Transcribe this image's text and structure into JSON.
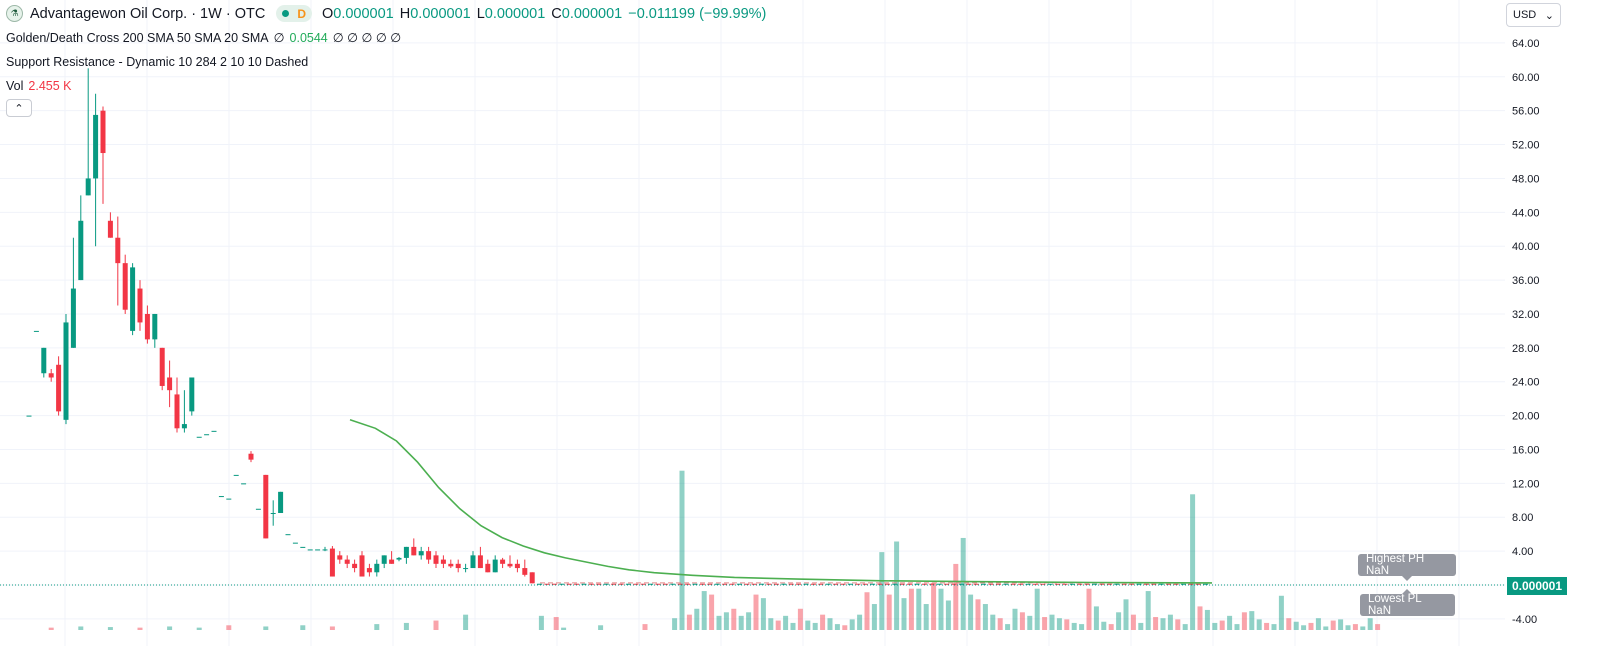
{
  "header": {
    "symbol_title": "Advantagewon Oil Corp. · 1W · OTC",
    "interval_badge": "D",
    "ohlc": [
      {
        "label": "O",
        "value": "0.000001"
      },
      {
        "label": "H",
        "value": "0.000001"
      },
      {
        "label": "L",
        "value": "0.000001"
      },
      {
        "label": "C",
        "value": "0.000001"
      }
    ],
    "change": "−0.011199 (−99.99%)"
  },
  "indicators": {
    "cross": {
      "name": "Golden/Death Cross 200 SMA 50 SMA 20 SMA",
      "value_a": "∅",
      "value_main": "0.0544",
      "rest": "∅ ∅ ∅ ∅ ∅"
    },
    "support": {
      "name": "Support Resistance - Dynamic 10 284 2 10 10 Dashed"
    },
    "volume": {
      "name": "Vol",
      "value": "2.455 K"
    }
  },
  "currency_selector": {
    "value": "USD"
  },
  "last_price_tag": "0.000001",
  "tooltips": {
    "highest": "Highest PH NaN",
    "lowest": "Lowest PL NaN"
  },
  "colors": {
    "up": "#089981",
    "down": "#f23645",
    "sma": "#4caf50",
    "grid": "#f0f3fa"
  },
  "icons": {
    "collapse": "chevron-up-icon",
    "currency_dropdown": "chevron-down-icon",
    "logo": "company-logo-icon"
  },
  "chart_data": {
    "type": "candlestick",
    "y_ticks": [
      "64.00",
      "60.00",
      "56.00",
      "52.00",
      "48.00",
      "44.00",
      "40.00",
      "36.00",
      "32.00",
      "28.00",
      "24.00",
      "20.00",
      "16.00",
      "12.00",
      "8.00",
      "4.00",
      "0.000001",
      "-4.00"
    ],
    "ylim": [
      -4,
      64
    ],
    "candles": [
      {
        "o": 20,
        "h": 20,
        "l": 20,
        "c": 20
      },
      {
        "o": 30,
        "h": 30,
        "l": 30,
        "c": 30
      },
      {
        "o": 25,
        "h": 28,
        "l": 24.5,
        "c": 28
      },
      {
        "o": 25,
        "h": 25.5,
        "l": 24,
        "c": 24.5
      },
      {
        "o": 26,
        "h": 27,
        "l": 20,
        "c": 20.5
      },
      {
        "o": 19.5,
        "h": 32,
        "l": 19,
        "c": 31
      },
      {
        "o": 28,
        "h": 41,
        "l": 28,
        "c": 35
      },
      {
        "o": 36,
        "h": 46,
        "l": 36,
        "c": 43
      },
      {
        "o": 46,
        "h": 61,
        "l": 46,
        "c": 48
      },
      {
        "o": 48,
        "h": 58,
        "l": 40,
        "c": 55.5
      },
      {
        "o": 56,
        "h": 56.5,
        "l": 45,
        "c": 51
      },
      {
        "o": 43,
        "h": 44,
        "l": 41,
        "c": 41
      },
      {
        "o": 41,
        "h": 43.5,
        "l": 33,
        "c": 38
      },
      {
        "o": 38,
        "h": 39,
        "l": 32,
        "c": 32.5
      },
      {
        "o": 30,
        "h": 38,
        "l": 29.5,
        "c": 37.5
      },
      {
        "o": 35,
        "h": 36,
        "l": 30,
        "c": 31
      },
      {
        "o": 32,
        "h": 33,
        "l": 28.5,
        "c": 29
      },
      {
        "o": 29,
        "h": 32,
        "l": 28,
        "c": 32
      },
      {
        "o": 28,
        "h": 28,
        "l": 23,
        "c": 23.5
      },
      {
        "o": 24.5,
        "h": 26.5,
        "l": 21,
        "c": 23
      },
      {
        "o": 22.5,
        "h": 24.5,
        "l": 18,
        "c": 18.5
      },
      {
        "o": 18.5,
        "h": 23,
        "l": 18,
        "c": 19
      },
      {
        "o": 20.5,
        "h": 24.5,
        "l": 20,
        "c": 24.5
      },
      {
        "o": 17.5,
        "h": 17.5,
        "l": 17.5,
        "c": 17.5
      },
      {
        "o": 17.8,
        "h": 17.8,
        "l": 17.8,
        "c": 17.8
      },
      {
        "o": 18.2,
        "h": 18.2,
        "l": 18.2,
        "c": 18.2
      },
      {
        "o": 10.5,
        "h": 10.5,
        "l": 10.5,
        "c": 10.5
      },
      {
        "o": 10.2,
        "h": 10.2,
        "l": 10.2,
        "c": 10.2
      },
      {
        "o": 13,
        "h": 13,
        "l": 13,
        "c": 13
      },
      {
        "o": 12,
        "h": 12,
        "l": 12,
        "c": 12
      },
      {
        "o": 15.5,
        "h": 15.8,
        "l": 14.5,
        "c": 14.8
      },
      {
        "o": 9,
        "h": 9,
        "l": 9,
        "c": 9
      },
      {
        "o": 13,
        "h": 13,
        "l": 5.5,
        "c": 5.5
      },
      {
        "o": 8.5,
        "h": 10,
        "l": 7,
        "c": 8.5
      },
      {
        "o": 8.5,
        "h": 11,
        "l": 8.5,
        "c": 11
      },
      {
        "o": 6,
        "h": 6,
        "l": 6,
        "c": 6
      },
      {
        "o": 5,
        "h": 5,
        "l": 5,
        "c": 5
      },
      {
        "o": 4.5,
        "h": 4.5,
        "l": 4.5,
        "c": 4.5
      },
      {
        "o": 4.2,
        "h": 4.2,
        "l": 4.2,
        "c": 4.2
      },
      {
        "o": 4.2,
        "h": 4.2,
        "l": 4.2,
        "c": 4.2
      },
      {
        "o": 4.2,
        "h": 4.5,
        "l": 4,
        "c": 4.2
      },
      {
        "o": 4.3,
        "h": 4.6,
        "l": 1,
        "c": 1
      },
      {
        "o": 3.5,
        "h": 4,
        "l": 2.5,
        "c": 3
      },
      {
        "o": 3,
        "h": 3.5,
        "l": 2,
        "c": 2.5
      },
      {
        "o": 2.5,
        "h": 3,
        "l": 1.5,
        "c": 2
      },
      {
        "o": 3.5,
        "h": 4,
        "l": 1,
        "c": 1
      },
      {
        "o": 2,
        "h": 2.5,
        "l": 1,
        "c": 1.5
      },
      {
        "o": 1.5,
        "h": 3,
        "l": 1,
        "c": 2.5
      },
      {
        "o": 2.5,
        "h": 3.5,
        "l": 2,
        "c": 3.5
      },
      {
        "o": 3,
        "h": 4,
        "l": 2.5,
        "c": 2.5
      },
      {
        "o": 3,
        "h": 3.3,
        "l": 2.8,
        "c": 3.2
      },
      {
        "o": 3.2,
        "h": 4.5,
        "l": 2.5,
        "c": 4.5
      },
      {
        "o": 4.5,
        "h": 5.5,
        "l": 3.5,
        "c": 3.5
      },
      {
        "o": 3.5,
        "h": 4.5,
        "l": 3,
        "c": 4
      },
      {
        "o": 4,
        "h": 4.5,
        "l": 2.5,
        "c": 3
      },
      {
        "o": 3.5,
        "h": 4,
        "l": 2,
        "c": 2.5
      },
      {
        "o": 3,
        "h": 3.5,
        "l": 2,
        "c": 2.5
      },
      {
        "o": 2.5,
        "h": 3,
        "l": 2,
        "c": 2.2
      },
      {
        "o": 2.5,
        "h": 3,
        "l": 1.5,
        "c": 2
      },
      {
        "o": 2,
        "h": 2.5,
        "l": 1.5,
        "c": 2
      },
      {
        "o": 2,
        "h": 4,
        "l": 2,
        "c": 3.5
      },
      {
        "o": 3.5,
        "h": 4.5,
        "l": 2,
        "c": 2
      },
      {
        "o": 2.5,
        "h": 3,
        "l": 1.5,
        "c": 1.5
      },
      {
        "o": 1.5,
        "h": 3.5,
        "l": 1.5,
        "c": 3
      },
      {
        "o": 3,
        "h": 3.2,
        "l": 2,
        "c": 2.5
      },
      {
        "o": 2.5,
        "h": 3.5,
        "l": 2,
        "c": 2.2
      },
      {
        "o": 2.5,
        "h": 3,
        "l": 1.5,
        "c": 2
      },
      {
        "o": 2,
        "h": 3,
        "l": 1,
        "c": 1.2
      },
      {
        "o": 1.5,
        "h": 1.5,
        "l": 0.2,
        "c": 0.2
      }
    ],
    "sma_line": [
      [
        54,
        19.5
      ],
      [
        60,
        18.5
      ],
      [
        65,
        17
      ],
      [
        70,
        14.5
      ],
      [
        75,
        11.5
      ],
      [
        80,
        9
      ],
      [
        85,
        7
      ],
      [
        90,
        5.6
      ],
      [
        95,
        4.6
      ],
      [
        100,
        3.8
      ],
      [
        105,
        3.2
      ],
      [
        110,
        2.7
      ],
      [
        115,
        2.2
      ],
      [
        120,
        1.8
      ],
      [
        126,
        1.45
      ],
      [
        135,
        1.15
      ],
      [
        145,
        0.9
      ],
      [
        160,
        0.7
      ],
      [
        180,
        0.5
      ],
      [
        200,
        0.4
      ],
      [
        230,
        0.3
      ],
      [
        258,
        0.25
      ]
    ],
    "volume": [
      [
        4,
        0.2
      ],
      [
        8,
        0.3
      ],
      [
        12,
        0.25
      ],
      [
        16,
        0.2
      ],
      [
        20,
        0.3
      ],
      [
        24,
        0.2
      ],
      [
        28,
        0.4
      ],
      [
        33,
        0.3
      ],
      [
        38,
        0.4
      ],
      [
        42,
        0.3
      ],
      [
        48,
        0.5
      ],
      [
        52,
        0.6
      ],
      [
        56,
        0.8
      ],
      [
        60,
        1.3
      ],
      [
        62,
        1.2
      ],
      [
        64,
        1.1
      ],
      [
        65,
        0.2
      ],
      [
        70,
        0.4
      ],
      [
        76,
        0.5
      ],
      [
        80,
        1.0
      ],
      [
        81,
        13.5
      ],
      [
        82,
        1.3
      ],
      [
        83,
        1.8
      ],
      [
        84,
        3.3
      ],
      [
        85,
        3.0
      ],
      [
        86,
        1.2
      ],
      [
        87,
        1.5
      ],
      [
        88,
        1.8
      ],
      [
        89,
        1.2
      ],
      [
        90,
        1.5
      ],
      [
        91,
        3.0
      ],
      [
        92,
        2.7
      ],
      [
        93,
        1.0
      ],
      [
        94,
        0.8
      ],
      [
        95,
        1.2
      ],
      [
        96,
        0.6
      ],
      [
        97,
        1.8
      ],
      [
        98,
        0.8
      ],
      [
        99,
        0.6
      ],
      [
        100,
        1.3
      ],
      [
        101,
        1.0
      ],
      [
        102,
        0.5
      ],
      [
        103,
        0.4
      ],
      [
        104,
        0.9
      ],
      [
        105,
        1.3
      ],
      [
        106,
        3.2
      ],
      [
        107,
        2.2
      ],
      [
        108,
        6.6
      ],
      [
        109,
        3.0
      ],
      [
        110,
        7.5
      ],
      [
        111,
        2.7
      ],
      [
        112,
        3.5
      ],
      [
        113,
        3.5
      ],
      [
        114,
        2.2
      ],
      [
        115,
        4.0
      ],
      [
        116,
        3.5
      ],
      [
        117,
        2.5
      ],
      [
        118,
        5.6
      ],
      [
        119,
        7.8
      ],
      [
        120,
        3.0
      ],
      [
        121,
        2.6
      ],
      [
        122,
        2.2
      ],
      [
        123,
        1.3
      ],
      [
        124,
        1.0
      ],
      [
        125,
        0.5
      ],
      [
        126,
        1.8
      ],
      [
        127,
        1.5
      ],
      [
        128,
        1.2
      ],
      [
        129,
        3.5
      ],
      [
        130,
        1.1
      ],
      [
        131,
        1.3
      ],
      [
        132,
        1.0
      ],
      [
        133,
        0.9
      ],
      [
        134,
        0.6
      ],
      [
        135,
        0.5
      ],
      [
        136,
        3.5
      ],
      [
        137,
        2.0
      ],
      [
        138,
        0.7
      ],
      [
        139,
        0.5
      ],
      [
        140,
        1.5
      ],
      [
        141,
        2.6
      ],
      [
        142,
        1.3
      ],
      [
        143,
        0.6
      ],
      [
        144,
        3.3
      ],
      [
        145,
        1.1
      ],
      [
        146,
        1.0
      ],
      [
        147,
        1.3
      ],
      [
        148,
        0.9
      ],
      [
        149,
        0.5
      ],
      [
        150,
        11.5
      ],
      [
        151,
        2.0
      ],
      [
        152,
        1.7
      ],
      [
        153,
        0.6
      ],
      [
        154,
        0.8
      ],
      [
        155,
        1.2
      ],
      [
        156,
        0.5
      ],
      [
        157,
        1.5
      ],
      [
        158,
        1.6
      ],
      [
        159,
        0.9
      ],
      [
        160,
        0.6
      ],
      [
        161,
        0.5
      ],
      [
        162,
        2.9
      ],
      [
        163,
        1.0
      ],
      [
        164,
        0.7
      ],
      [
        165,
        0.4
      ],
      [
        166,
        0.6
      ],
      [
        167,
        1.0
      ],
      [
        168,
        0.3
      ],
      [
        169,
        0.8
      ],
      [
        170,
        0.9
      ],
      [
        171,
        0.4
      ],
      [
        172,
        0.5
      ],
      [
        173,
        0.3
      ],
      [
        174,
        1.0
      ],
      [
        175,
        0.5
      ]
    ]
  }
}
